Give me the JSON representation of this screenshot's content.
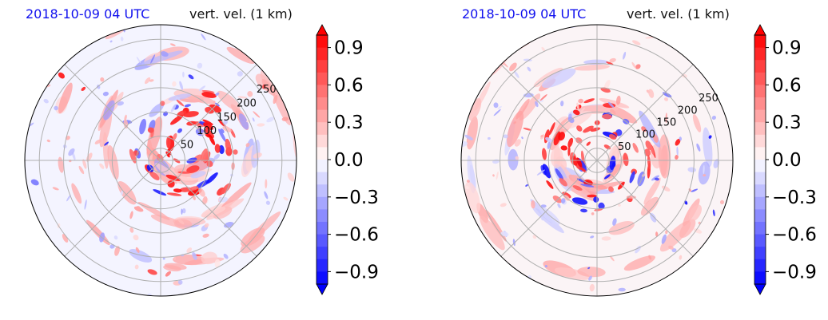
{
  "chart_data": [
    {
      "type": "heatmap",
      "projection": "polar",
      "title_left": "2018-10-09 04 UTC",
      "title_right": "vert. vel. (1 km)",
      "radial_ticks": [
        "50",
        "100",
        "150",
        "200",
        "250"
      ],
      "radial_range": [
        0,
        280
      ],
      "angular_grid_deg": 45,
      "grid": true,
      "colorbar": {
        "ticks": [
          "0.9",
          "0.6",
          "0.3",
          "0.0",
          "−0.3",
          "−0.6",
          "−0.9"
        ],
        "tick_values": [
          0.9,
          0.6,
          0.3,
          0.0,
          -0.3,
          -0.6,
          -0.9
        ],
        "range": [
          -1.0,
          1.0
        ],
        "extend": "both",
        "cmap": "bwr"
      },
      "colors": {
        "positive": "#ff0000",
        "negative": "#0000ff",
        "neutral": "#ffffff"
      }
    },
    {
      "type": "heatmap",
      "projection": "polar",
      "title_left": "2018-10-09 04 UTC",
      "title_right": "vert. vel. (1 km)",
      "radial_ticks": [
        "50",
        "100",
        "150",
        "200",
        "250"
      ],
      "radial_range": [
        0,
        280
      ],
      "angular_grid_deg": 45,
      "grid": true,
      "colorbar": {
        "ticks": [
          "0.9",
          "0.6",
          "0.3",
          "0.0",
          "−0.3",
          "−0.6",
          "−0.9"
        ],
        "tick_values": [
          0.9,
          0.6,
          0.3,
          0.0,
          -0.3,
          -0.6,
          -0.9
        ],
        "range": [
          -1.0,
          1.0
        ],
        "extend": "both",
        "cmap": "bwr"
      },
      "colors": {
        "positive": "#ff0000",
        "negative": "#0000ff",
        "neutral": "#ffffff"
      }
    }
  ]
}
